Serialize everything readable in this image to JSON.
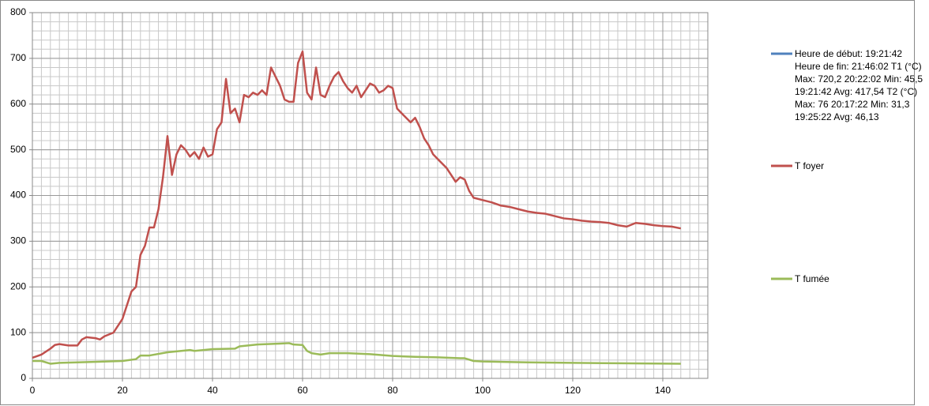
{
  "chart_data": {
    "type": "line",
    "xlim": [
      0,
      150
    ],
    "xticks": [
      0,
      20,
      40,
      60,
      80,
      100,
      120,
      140
    ],
    "ylim": [
      0,
      800
    ],
    "yticks": [
      0,
      100,
      200,
      300,
      400,
      500,
      600,
      700,
      800
    ],
    "grid": true,
    "x_minor_step": 2,
    "y_minor_step": 20,
    "legend": "right",
    "series": [
      {
        "name": "Heure de début: 19:21:42 Heure de fin:  21:46:02 T1 (°C) Max: 720,2  20:22:02 Min: 45,5  19:21:42 Avg: 417,54 T2 (°C) Max: 76 20:17:22 Min: 31,3 19:25:22 Avg: 46,13",
        "color": "#4f81bd",
        "x": [],
        "values": []
      },
      {
        "name": "T foyer",
        "color": "#c0504d",
        "x": [
          0,
          2,
          4,
          5,
          6,
          8,
          10,
          11,
          12,
          14,
          15,
          16,
          18,
          20,
          21,
          22,
          23,
          24,
          25,
          26,
          27,
          28,
          29,
          30,
          31,
          32,
          33,
          34,
          35,
          36,
          37,
          38,
          39,
          40,
          41,
          42,
          43,
          44,
          45,
          46,
          47,
          48,
          49,
          50,
          51,
          52,
          53,
          54,
          55,
          56,
          57,
          58,
          59,
          60,
          61,
          62,
          63,
          64,
          65,
          66,
          67,
          68,
          69,
          70,
          71,
          72,
          73,
          74,
          75,
          76,
          77,
          78,
          79,
          80,
          81,
          82,
          83,
          84,
          85,
          86,
          87,
          88,
          89,
          90,
          91,
          92,
          93,
          94,
          95,
          96,
          97,
          98,
          100,
          102,
          104,
          106,
          108,
          110,
          112,
          114,
          116,
          118,
          120,
          122,
          124,
          126,
          128,
          130,
          132,
          134,
          136,
          138,
          140,
          142,
          144
        ],
        "values": [
          45,
          52,
          65,
          73,
          75,
          72,
          72,
          85,
          90,
          88,
          85,
          92,
          100,
          130,
          160,
          190,
          200,
          270,
          290,
          330,
          330,
          370,
          440,
          530,
          445,
          490,
          510,
          500,
          485,
          495,
          480,
          505,
          485,
          490,
          545,
          560,
          655,
          580,
          590,
          560,
          620,
          615,
          625,
          620,
          630,
          620,
          680,
          660,
          640,
          610,
          605,
          605,
          690,
          715,
          625,
          610,
          680,
          620,
          615,
          640,
          660,
          670,
          650,
          635,
          625,
          640,
          615,
          630,
          645,
          640,
          625,
          630,
          640,
          635,
          590,
          580,
          570,
          560,
          570,
          550,
          525,
          510,
          490,
          480,
          470,
          460,
          445,
          430,
          440,
          435,
          410,
          395,
          390,
          385,
          378,
          375,
          370,
          365,
          362,
          360,
          355,
          350,
          348,
          345,
          343,
          342,
          340,
          335,
          332,
          340,
          338,
          335,
          333,
          332,
          328
        ]
      },
      {
        "name": "T fumée",
        "color": "#9bbb59",
        "x": [
          0,
          2,
          4,
          6,
          10,
          20,
          23,
          24,
          26,
          30,
          35,
          36,
          40,
          45,
          46,
          50,
          55,
          57,
          58,
          60,
          61,
          62,
          64,
          66,
          70,
          75,
          80,
          85,
          90,
          95,
          96,
          98,
          100,
          110,
          120,
          130,
          144
        ],
        "values": [
          38,
          38,
          32,
          34,
          35,
          38,
          42,
          50,
          50,
          57,
          62,
          60,
          64,
          65,
          70,
          74,
          76,
          77,
          74,
          73,
          60,
          55,
          52,
          55,
          55,
          53,
          49,
          47,
          46,
          44,
          44,
          38,
          37,
          35,
          34,
          33,
          32
        ]
      }
    ]
  }
}
